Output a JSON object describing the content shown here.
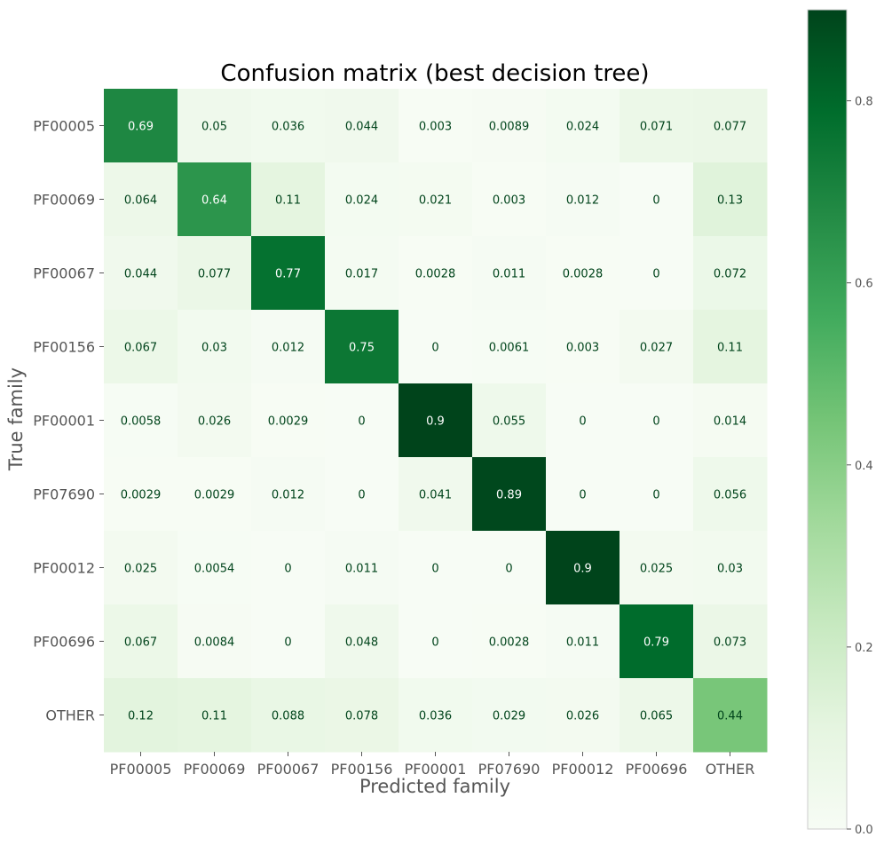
{
  "chart_data": {
    "type": "heatmap",
    "title": "Confusion matrix (best decision tree)",
    "xlabel": "Predicted family",
    "ylabel": "True family",
    "x_categories": [
      "PF00005",
      "PF00069",
      "PF00067",
      "PF00156",
      "PF00001",
      "PF07690",
      "PF00012",
      "PF00696",
      "OTHER"
    ],
    "y_categories": [
      "PF00005",
      "PF00069",
      "PF00067",
      "PF00156",
      "PF00001",
      "PF07690",
      "PF00012",
      "PF00696",
      "OTHER"
    ],
    "values": [
      [
        0.69,
        0.05,
        0.036,
        0.044,
        0.003,
        0.0089,
        0.024,
        0.071,
        0.077
      ],
      [
        0.064,
        0.64,
        0.11,
        0.024,
        0.021,
        0.003,
        0.012,
        0,
        0.13
      ],
      [
        0.044,
        0.077,
        0.77,
        0.017,
        0.0028,
        0.011,
        0.0028,
        0,
        0.072
      ],
      [
        0.067,
        0.03,
        0.012,
        0.75,
        0,
        0.0061,
        0.003,
        0.027,
        0.11
      ],
      [
        0.0058,
        0.026,
        0.0029,
        0,
        0.9,
        0.055,
        0,
        0,
        0.014
      ],
      [
        0.0029,
        0.0029,
        0.012,
        0,
        0.041,
        0.89,
        0,
        0,
        0.056
      ],
      [
        0.025,
        0.0054,
        0,
        0.011,
        0,
        0,
        0.9,
        0.025,
        0.03
      ],
      [
        0.067,
        0.0084,
        0,
        0.048,
        0,
        0.0028,
        0.011,
        0.79,
        0.073
      ],
      [
        0.12,
        0.11,
        0.088,
        0.078,
        0.036,
        0.029,
        0.026,
        0.065,
        0.44
      ]
    ],
    "colormap": "Greens",
    "colorbar": {
      "range": [
        0,
        0.9
      ],
      "ticks": [
        0.0,
        0.2,
        0.4,
        0.6,
        0.8
      ],
      "tick_labels": [
        "0.0",
        "0.2",
        "0.4",
        "0.6",
        "0.8"
      ]
    },
    "grid": false
  }
}
